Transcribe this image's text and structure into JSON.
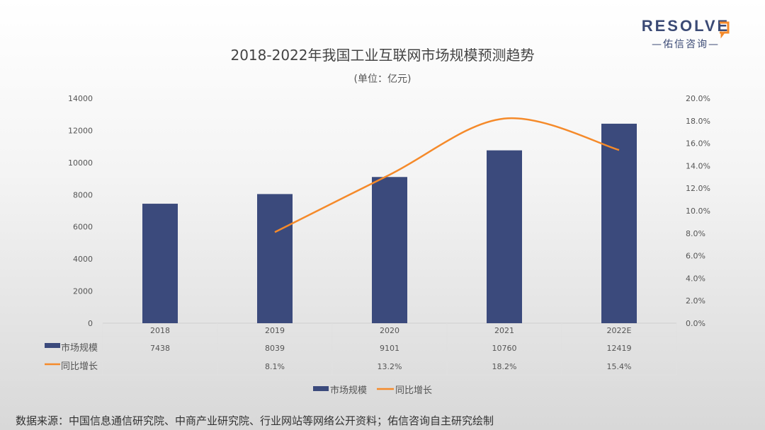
{
  "logo": {
    "text": "RESOLVE",
    "sub": "—佑信咨询—"
  },
  "chart_data": {
    "type": "bar+line",
    "title": "2018-2022年我国工业互联网市场规模预测趋势",
    "subtitle": "(单位：亿元)",
    "categories": [
      "2018",
      "2019",
      "2020",
      "2021",
      "2022E"
    ],
    "series": [
      {
        "name": "市场规模",
        "type": "bar",
        "axis": "left",
        "color": "#3b4a7c",
        "values": [
          7438,
          8039,
          9101,
          10760,
          12419
        ],
        "labels": [
          "7438",
          "8039",
          "9101",
          "10760",
          "12419"
        ]
      },
      {
        "name": "同比增长",
        "type": "line",
        "smooth": true,
        "axis": "right",
        "color": "#f58a2a",
        "values": [
          null,
          8.1,
          13.2,
          18.2,
          15.4
        ],
        "labels": [
          "",
          "8.1%",
          "13.2%",
          "18.2%",
          "15.4%"
        ]
      }
    ],
    "left_axis": {
      "ylim": [
        0,
        14000
      ],
      "ticks": [
        "0",
        "2000",
        "4000",
        "6000",
        "8000",
        "10000",
        "12000",
        "14000"
      ]
    },
    "right_axis": {
      "ylim": [
        0,
        20
      ],
      "ticks": [
        "0.0%",
        "2.0%",
        "4.0%",
        "6.0%",
        "8.0%",
        "10.0%",
        "12.0%",
        "14.0%",
        "16.0%",
        "18.0%",
        "20.0%"
      ]
    },
    "grid": false,
    "legend": "bottom",
    "data_table": true
  },
  "source": "数据来源：中国信息通信研究院、中商产业研究院、行业网站等网络公开资料；佑信咨询自主研究绘制"
}
